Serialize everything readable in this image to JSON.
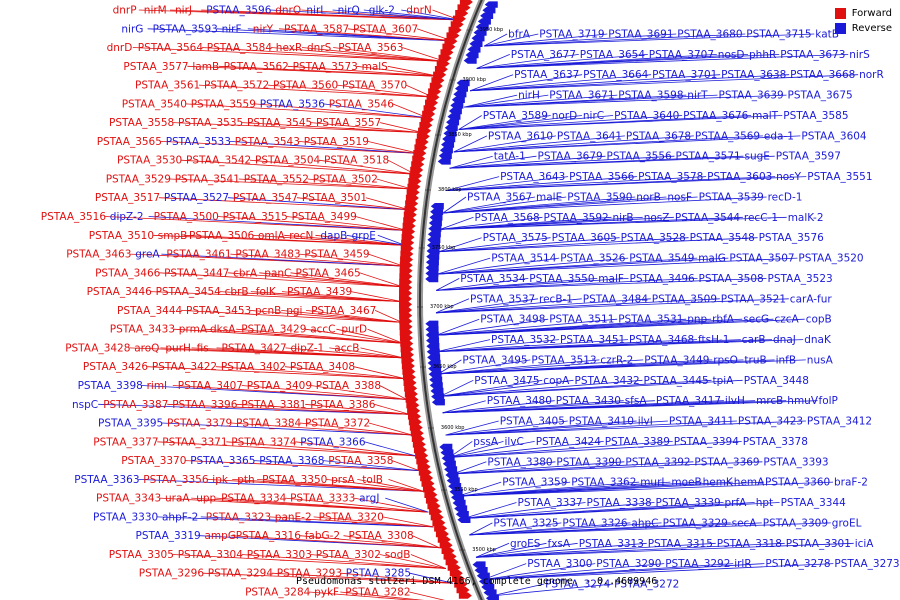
{
  "footer": "Pseudomonas stutzeri DSM 4166, complete genome. - 0..4689946",
  "legend": {
    "forward": {
      "label": "Forward",
      "color": "#e01010"
    },
    "reverse": {
      "label": "Reverse",
      "color": "#1a1ad8"
    }
  },
  "ticks": [
    "3950 kbp",
    "3900 kbp",
    "3850 kbp",
    "3800 kbp",
    "3750 kbp",
    "3700 kbp",
    "3650 kbp",
    "3600 kbp",
    "3550 kbp",
    "3500 kbp"
  ],
  "left_labels": [
    {
      "t": "dnrP",
      "s": "f"
    },
    {
      "t": "nirM",
      "s": "f"
    },
    {
      "t": "nirJ",
      "s": "f"
    },
    {
      "t": "PSTAA_3596",
      "s": "r"
    },
    {
      "t": "dnrO",
      "s": "f"
    },
    {
      "t": "nirL",
      "s": "r"
    },
    {
      "t": "nirQ",
      "s": "r"
    },
    {
      "t": "glk-2",
      "s": "r"
    },
    {
      "t": "dnrN",
      "s": "f"
    },
    {
      "t": "nirG",
      "s": "r"
    },
    {
      "t": "PSTAA_3593",
      "s": "r"
    },
    {
      "t": "nirF",
      "s": "r"
    },
    {
      "t": "nirY",
      "s": "f"
    },
    {
      "t": "PSTAA_3587",
      "s": "f"
    },
    {
      "t": "PSTAA_3607",
      "s": "f"
    },
    {
      "t": "dnrD",
      "s": "f"
    },
    {
      "t": "PSTAA_3564",
      "s": "f"
    },
    {
      "t": "PSTAA_3584",
      "s": "f"
    },
    {
      "t": "hexR",
      "s": "f"
    },
    {
      "t": "dnrS",
      "s": "f"
    },
    {
      "t": "PSTAA_3563",
      "s": "f"
    },
    {
      "t": "PSTAA_3577",
      "s": "f"
    },
    {
      "t": "lamB",
      "s": "f"
    },
    {
      "t": "PSTAA_3562",
      "s": "f"
    },
    {
      "t": "PSTAA_3573",
      "s": "f"
    },
    {
      "t": "malS",
      "s": "f"
    },
    {
      "t": "PSTAA_3561",
      "s": "f"
    },
    {
      "t": "PSTAA_3572",
      "s": "f"
    },
    {
      "t": "PSTAA_3560",
      "s": "f"
    },
    {
      "t": "PSTAA_3570",
      "s": "f"
    },
    {
      "t": "PSTAA_3540",
      "s": "f"
    },
    {
      "t": "PSTAA_3559",
      "s": "f"
    },
    {
      "t": "PSTAA_3536",
      "s": "r"
    },
    {
      "t": "PSTAA_3546",
      "s": "f"
    },
    {
      "t": "PSTAA_3558",
      "s": "f"
    },
    {
      "t": "PSTAA_3535",
      "s": "f"
    },
    {
      "t": "PSTAA_3545",
      "s": "f"
    },
    {
      "t": "PSTAA_3557",
      "s": "f"
    },
    {
      "t": "PSTAA_3565",
      "s": "f"
    },
    {
      "t": "PSTAA_3533",
      "s": "r"
    },
    {
      "t": "PSTAA_3543",
      "s": "f"
    },
    {
      "t": "PSTAA_3519",
      "s": "f"
    },
    {
      "t": "PSTAA_3530",
      "s": "f"
    },
    {
      "t": "PSTAA_3542",
      "s": "f"
    },
    {
      "t": "PSTAA_3504",
      "s": "f"
    },
    {
      "t": "PSTAA_3518",
      "s": "f"
    },
    {
      "t": "PSTAA_3529",
      "s": "f"
    },
    {
      "t": "PSTAA_3541",
      "s": "f"
    },
    {
      "t": "PSTAA_3552",
      "s": "f"
    },
    {
      "t": "PSTAA_3502",
      "s": "f"
    },
    {
      "t": "PSTAA_3517",
      "s": "f"
    },
    {
      "t": "PSTAA_3527",
      "s": "r"
    },
    {
      "t": "PSTAA_3547",
      "s": "f"
    },
    {
      "t": "PSTAA_3501",
      "s": "f"
    },
    {
      "t": "PSTAA_3516",
      "s": "f"
    },
    {
      "t": "dipZ-2",
      "s": "r"
    },
    {
      "t": "PSTAA_3500",
      "s": "f"
    },
    {
      "t": "PSTAA_3515",
      "s": "f"
    },
    {
      "t": "PSTAA_3499",
      "s": "f"
    },
    {
      "t": "PSTAA_3510",
      "s": "f"
    },
    {
      "t": "smpB",
      "s": "f"
    },
    {
      "t": "PSTAA_3506",
      "s": "f"
    },
    {
      "t": "omlA",
      "s": "f"
    },
    {
      "t": "recN",
      "s": "f"
    },
    {
      "t": "dapB",
      "s": "r"
    },
    {
      "t": "grpE",
      "s": "r"
    },
    {
      "t": "PSTAA_3463",
      "s": "f"
    },
    {
      "t": "greA",
      "s": "r"
    },
    {
      "t": "PSTAA_3461",
      "s": "f"
    },
    {
      "t": "PSTAA_3483",
      "s": "f"
    },
    {
      "t": "PSTAA_3459",
      "s": "f"
    },
    {
      "t": "PSTAA_3466",
      "s": "f"
    },
    {
      "t": "PSTAA_3447",
      "s": "f"
    },
    {
      "t": "cbrA",
      "s": "f"
    },
    {
      "t": "panC",
      "s": "f"
    },
    {
      "t": "PSTAA_3465",
      "s": "f"
    },
    {
      "t": "PSTAA_3446",
      "s": "f"
    },
    {
      "t": "PSTAA_3454",
      "s": "f"
    },
    {
      "t": "cbrB",
      "s": "f"
    },
    {
      "t": "folK",
      "s": "f"
    },
    {
      "t": "PSTAA_3439",
      "s": "f"
    },
    {
      "t": "PSTAA_3444",
      "s": "f"
    },
    {
      "t": "PSTAA_3453",
      "s": "f"
    },
    {
      "t": "pcnB",
      "s": "f"
    },
    {
      "t": "pgi",
      "s": "f"
    },
    {
      "t": "PSTAA_3467",
      "s": "f"
    },
    {
      "t": "PSTAA_3433",
      "s": "f"
    },
    {
      "t": "prmA",
      "s": "f"
    },
    {
      "t": "dksA",
      "s": "f"
    },
    {
      "t": "PSTAA_3429",
      "s": "f"
    },
    {
      "t": "accC",
      "s": "f"
    },
    {
      "t": "purD",
      "s": "f"
    },
    {
      "t": "PSTAA_3428",
      "s": "f"
    },
    {
      "t": "aroQ",
      "s": "f"
    },
    {
      "t": "purH",
      "s": "f"
    },
    {
      "t": "fis",
      "s": "f"
    },
    {
      "t": "PSTAA_3427",
      "s": "f"
    },
    {
      "t": "dipZ-1",
      "s": "f"
    },
    {
      "t": "accB",
      "s": "f"
    },
    {
      "t": "PSTAA_3426",
      "s": "f"
    },
    {
      "t": "PSTAA_3422",
      "s": "f"
    },
    {
      "t": "PSTAA_3402",
      "s": "f"
    },
    {
      "t": "PSTAA_3408",
      "s": "f"
    },
    {
      "t": "PSTAA_3398",
      "s": "r"
    },
    {
      "t": "rimI",
      "s": "f"
    },
    {
      "t": "PSTAA_3407",
      "s": "f"
    },
    {
      "t": "PSTAA_3409",
      "s": "f"
    },
    {
      "t": "PSTAA_3388",
      "s": "f"
    },
    {
      "t": "nspC",
      "s": "r"
    },
    {
      "t": "PSTAA_3387",
      "s": "f"
    },
    {
      "t": "PSTAA_3396",
      "s": "f"
    },
    {
      "t": "PSTAA_3381",
      "s": "f"
    },
    {
      "t": "PSTAA_3386",
      "s": "f"
    },
    {
      "t": "PSTAA_3395",
      "s": "r"
    },
    {
      "t": "PSTAA_3379",
      "s": "f"
    },
    {
      "t": "PSTAA_3384",
      "s": "f"
    },
    {
      "t": "PSTAA_3372",
      "s": "f"
    },
    {
      "t": "PSTAA_3377",
      "s": "f"
    },
    {
      "t": "PSTAA_3371",
      "s": "f"
    },
    {
      "t": "PSTAA_3374",
      "s": "f"
    },
    {
      "t": "PSTAA_3366",
      "s": "r"
    },
    {
      "t": "PSTAA_3370",
      "s": "f"
    },
    {
      "t": "PSTAA_3365",
      "s": "r"
    },
    {
      "t": "PSTAA_3368",
      "s": "r"
    },
    {
      "t": "PSTAA_3358",
      "s": "f"
    },
    {
      "t": "PSTAA_3363",
      "s": "r"
    },
    {
      "t": "PSTAA_3356",
      "s": "f"
    },
    {
      "t": "ipk",
      "s": "f"
    },
    {
      "t": "pth",
      "s": "f"
    },
    {
      "t": "PSTAA_3350",
      "s": "f"
    },
    {
      "t": "prsA",
      "s": "f"
    },
    {
      "t": "tolB",
      "s": "f"
    },
    {
      "t": "PSTAA_3343",
      "s": "f"
    },
    {
      "t": "uraA",
      "s": "f"
    },
    {
      "t": "upp",
      "s": "f"
    },
    {
      "t": "PSTAA_3334",
      "s": "f"
    },
    {
      "t": "PSTAA_3333",
      "s": "f"
    },
    {
      "t": "argJ",
      "s": "r"
    },
    {
      "t": "PSTAA_3330",
      "s": "r"
    },
    {
      "t": "ahpF-2",
      "s": "r"
    },
    {
      "t": "PSTAA_3323",
      "s": "f"
    },
    {
      "t": "panE-2",
      "s": "f"
    },
    {
      "t": "PSTAA_3320",
      "s": "f"
    },
    {
      "t": "PSTAA_3319",
      "s": "r"
    },
    {
      "t": "ampG",
      "s": "f"
    },
    {
      "t": "PSTAA_3316",
      "s": "f"
    },
    {
      "t": "fabG-2",
      "s": "f"
    },
    {
      "t": "PSTAA_3308",
      "s": "f"
    },
    {
      "t": "PSTAA_3305",
      "s": "f"
    },
    {
      "t": "PSTAA_3304",
      "s": "f"
    },
    {
      "t": "PSTAA_3303",
      "s": "f"
    },
    {
      "t": "PSTAA_3302",
      "s": "f"
    },
    {
      "t": "sodB",
      "s": "f"
    },
    {
      "t": "PSTAA_3296",
      "s": "f"
    },
    {
      "t": "PSTAA_3294",
      "s": "f"
    },
    {
      "t": "PSTAA_3293",
      "s": "f"
    },
    {
      "t": "PSTAA_3285",
      "s": "r"
    },
    {
      "t": "PSTAA_3284",
      "s": "f"
    },
    {
      "t": "pykF",
      "s": "f"
    },
    {
      "t": "PSTAA_3282",
      "s": "f"
    }
  ],
  "right_labels": [
    {
      "t": "bfrA",
      "s": "r"
    },
    {
      "t": "PSTAA_3719",
      "s": "r"
    },
    {
      "t": "PSTAA_3691",
      "s": "r"
    },
    {
      "t": "PSTAA_3680",
      "s": "r"
    },
    {
      "t": "PSTAA_3715",
      "s": "r"
    },
    {
      "t": "katB",
      "s": "r"
    },
    {
      "t": "PSTAA_3677",
      "s": "r"
    },
    {
      "t": "PSTAA_3654",
      "s": "r"
    },
    {
      "t": "PSTAA_3707",
      "s": "r"
    },
    {
      "t": "nosD",
      "s": "r"
    },
    {
      "t": "phhR",
      "s": "r"
    },
    {
      "t": "PSTAA_3673",
      "s": "r"
    },
    {
      "t": "nirS",
      "s": "r"
    },
    {
      "t": "PSTAA_3637",
      "s": "r"
    },
    {
      "t": "PSTAA_3664",
      "s": "r"
    },
    {
      "t": "PSTAA_3701",
      "s": "r"
    },
    {
      "t": "PSTAA_3638",
      "s": "r"
    },
    {
      "t": "PSTAA_3668",
      "s": "r"
    },
    {
      "t": "norR",
      "s": "r"
    },
    {
      "t": "nirH",
      "s": "r"
    },
    {
      "t": "PSTAA_3671",
      "s": "r"
    },
    {
      "t": "PSTAA_3598",
      "s": "r"
    },
    {
      "t": "nirT",
      "s": "r"
    },
    {
      "t": "PSTAA_3639",
      "s": "r"
    },
    {
      "t": "PSTAA_3675",
      "s": "r"
    },
    {
      "t": "PSTAA_3589",
      "s": "r"
    },
    {
      "t": "norD",
      "s": "r"
    },
    {
      "t": "nirC",
      "s": "r"
    },
    {
      "t": "PSTAA_3640",
      "s": "r"
    },
    {
      "t": "PSTAA_3676",
      "s": "r"
    },
    {
      "t": "malT",
      "s": "r"
    },
    {
      "t": "PSTAA_3585",
      "s": "r"
    },
    {
      "t": "PSTAA_3610",
      "s": "r"
    },
    {
      "t": "PSTAA_3641",
      "s": "r"
    },
    {
      "t": "PSTAA_3678",
      "s": "r"
    },
    {
      "t": "PSTAA_3569",
      "s": "r"
    },
    {
      "t": "eda-1",
      "s": "r"
    },
    {
      "t": "PSTAA_3604",
      "s": "r"
    },
    {
      "t": "tatA-1",
      "s": "r"
    },
    {
      "t": "PSTAA_3679",
      "s": "r"
    },
    {
      "t": "PSTAA_3556",
      "s": "r"
    },
    {
      "t": "PSTAA_3571",
      "s": "r"
    },
    {
      "t": "sugE",
      "s": "r"
    },
    {
      "t": "PSTAA_3597",
      "s": "r"
    },
    {
      "t": "PSTAA_3643",
      "s": "r"
    },
    {
      "t": "PSTAA_3566",
      "s": "r"
    },
    {
      "t": "PSTAA_3578",
      "s": "r"
    },
    {
      "t": "PSTAA_3603",
      "s": "r"
    },
    {
      "t": "nosY",
      "s": "r"
    },
    {
      "t": "PSTAA_3551",
      "s": "r"
    },
    {
      "t": "PSTAA_3567",
      "s": "r"
    },
    {
      "t": "malE",
      "s": "r"
    },
    {
      "t": "PSTAA_3590",
      "s": "r"
    },
    {
      "t": "norB",
      "s": "r"
    },
    {
      "t": "nosF",
      "s": "r"
    },
    {
      "t": "PSTAA_3539",
      "s": "r"
    },
    {
      "t": "recD-1",
      "s": "r"
    },
    {
      "t": "PSTAA_3568",
      "s": "r"
    },
    {
      "t": "PSTAA_3592",
      "s": "r"
    },
    {
      "t": "nirB",
      "s": "r"
    },
    {
      "t": "nosZ",
      "s": "r"
    },
    {
      "t": "PSTAA_3544",
      "s": "r"
    },
    {
      "t": "recC-1",
      "s": "r"
    },
    {
      "t": "malK-2",
      "s": "r"
    },
    {
      "t": "PSTAA_3575",
      "s": "r"
    },
    {
      "t": "PSTAA_3605",
      "s": "r"
    },
    {
      "t": "PSTAA_3528",
      "s": "r"
    },
    {
      "t": "PSTAA_3548",
      "s": "r"
    },
    {
      "t": "PSTAA_3576",
      "s": "r"
    },
    {
      "t": "PSTAA_3514",
      "s": "r"
    },
    {
      "t": "PSTAA_3526",
      "s": "r"
    },
    {
      "t": "PSTAA_3549",
      "s": "r"
    },
    {
      "t": "malG",
      "s": "r"
    },
    {
      "t": "PSTAA_3507",
      "s": "r"
    },
    {
      "t": "PSTAA_3520",
      "s": "r"
    },
    {
      "t": "PSTAA_3534",
      "s": "r"
    },
    {
      "t": "PSTAA_3550",
      "s": "r"
    },
    {
      "t": "malF",
      "s": "r"
    },
    {
      "t": "PSTAA_3496",
      "s": "r"
    },
    {
      "t": "PSTAA_3508",
      "s": "r"
    },
    {
      "t": "PSTAA_3523",
      "s": "r"
    },
    {
      "t": "PSTAA_3537",
      "s": "r"
    },
    {
      "t": "recB-1",
      "s": "r"
    },
    {
      "t": "PSTAA_3484",
      "s": "r"
    },
    {
      "t": "PSTAA_3509",
      "s": "r"
    },
    {
      "t": "PSTAA_3521",
      "s": "r"
    },
    {
      "t": "carA-fur",
      "s": "r"
    },
    {
      "t": "PSTAA_3498",
      "s": "r"
    },
    {
      "t": "PSTAA_3511",
      "s": "r"
    },
    {
      "t": "PSTAA_3531",
      "s": "r"
    },
    {
      "t": "pnp",
      "s": "r"
    },
    {
      "t": "rbfA",
      "s": "r"
    },
    {
      "t": "secG",
      "s": "r"
    },
    {
      "t": "czcA",
      "s": "r"
    },
    {
      "t": "copB",
      "s": "r"
    },
    {
      "t": "PSTAA_3532",
      "s": "r"
    },
    {
      "t": "PSTAA_3451",
      "s": "r"
    },
    {
      "t": "PSTAA_3468",
      "s": "r"
    },
    {
      "t": "ftsH-1",
      "s": "r"
    },
    {
      "t": "carB",
      "s": "r"
    },
    {
      "t": "dnaJ",
      "s": "r"
    },
    {
      "t": "dnaK",
      "s": "r"
    },
    {
      "t": "PSTAA_3495",
      "s": "r"
    },
    {
      "t": "PSTAA_3513",
      "s": "r"
    },
    {
      "t": "czrR-2",
      "s": "r"
    },
    {
      "t": "PSTAA_3449",
      "s": "r"
    },
    {
      "t": "rpsO",
      "s": "r"
    },
    {
      "t": "truB",
      "s": "r"
    },
    {
      "t": "infB",
      "s": "r"
    },
    {
      "t": "nusA",
      "s": "r"
    },
    {
      "t": "PSTAA_3475",
      "s": "r"
    },
    {
      "t": "copA",
      "s": "r"
    },
    {
      "t": "PSTAA_3432",
      "s": "r"
    },
    {
      "t": "PSTAA_3445",
      "s": "r"
    },
    {
      "t": "tpiA",
      "s": "r"
    },
    {
      "t": "PSTAA_3448",
      "s": "r"
    },
    {
      "t": "PSTAA_3480",
      "s": "r"
    },
    {
      "t": "PSTAA_3430",
      "s": "r"
    },
    {
      "t": "sfsA",
      "s": "r"
    },
    {
      "t": "PSTAA_3417",
      "s": "r"
    },
    {
      "t": "ilvH",
      "s": "r"
    },
    {
      "t": "mrcB",
      "s": "r"
    },
    {
      "t": "hmuV",
      "s": "r"
    },
    {
      "t": "folP",
      "s": "r"
    },
    {
      "t": "PSTAA_3405",
      "s": "r"
    },
    {
      "t": "PSTAA_3410",
      "s": "r"
    },
    {
      "t": "ilvI",
      "s": "r"
    },
    {
      "t": "PSTAA_3411",
      "s": "r"
    },
    {
      "t": "PSTAA_3423",
      "s": "r"
    },
    {
      "t": "PSTAA_3412",
      "s": "r"
    },
    {
      "t": "pssA",
      "s": "r"
    },
    {
      "t": "ilvC",
      "s": "r"
    },
    {
      "t": "PSTAA_3424",
      "s": "r"
    },
    {
      "t": "PSTAA_3389",
      "s": "r"
    },
    {
      "t": "PSTAA_3394",
      "s": "r"
    },
    {
      "t": "PSTAA_3378",
      "s": "r"
    },
    {
      "t": "PSTAA_3380",
      "s": "r"
    },
    {
      "t": "PSTAA_3390",
      "s": "r"
    },
    {
      "t": "PSTAA_3392",
      "s": "r"
    },
    {
      "t": "PSTAA_3369",
      "s": "r"
    },
    {
      "t": "PSTAA_3393",
      "s": "r"
    },
    {
      "t": "PSTAA_3359",
      "s": "r"
    },
    {
      "t": "PSTAA_3362",
      "s": "r"
    },
    {
      "t": "murI",
      "s": "r"
    },
    {
      "t": "moeB",
      "s": "r"
    },
    {
      "t": "hemK",
      "s": "r"
    },
    {
      "t": "hemA",
      "s": "r"
    },
    {
      "t": "PSTAA_3360",
      "s": "r"
    },
    {
      "t": "braF-2",
      "s": "r"
    },
    {
      "t": "PSTAA_3337",
      "s": "r"
    },
    {
      "t": "PSTAA_3338",
      "s": "r"
    },
    {
      "t": "PSTAA_3339",
      "s": "r"
    },
    {
      "t": "prfA",
      "s": "r"
    },
    {
      "t": "hpt",
      "s": "r"
    },
    {
      "t": "PSTAA_3344",
      "s": "r"
    },
    {
      "t": "PSTAA_3325",
      "s": "r"
    },
    {
      "t": "PSTAA_3326",
      "s": "r"
    },
    {
      "t": "ahpC",
      "s": "r"
    },
    {
      "t": "PSTAA_3329",
      "s": "r"
    },
    {
      "t": "secA",
      "s": "r"
    },
    {
      "t": "PSTAA_3309",
      "s": "r"
    },
    {
      "t": "groEL",
      "s": "r"
    },
    {
      "t": "groES",
      "s": "r"
    },
    {
      "t": "fxsA",
      "s": "r"
    },
    {
      "t": "PSTAA_3313",
      "s": "r"
    },
    {
      "t": "PSTAA_3315",
      "s": "r"
    },
    {
      "t": "PSTAA_3318",
      "s": "r"
    },
    {
      "t": "PSTAA_3301",
      "s": "r"
    },
    {
      "t": "iciA",
      "s": "r"
    },
    {
      "t": "PSTAA_3300",
      "s": "r"
    },
    {
      "t": "PSTAA_3290",
      "s": "r"
    },
    {
      "t": "PSTAA_3292",
      "s": "r"
    },
    {
      "t": "irlR",
      "s": "r"
    },
    {
      "t": "PSTAA_3278",
      "s": "r"
    },
    {
      "t": "PSTAA_3273",
      "s": "r"
    },
    {
      "t": "PSTAA_3274",
      "s": "r"
    },
    {
      "t": "PSTAA_3272",
      "s": "r"
    }
  ]
}
